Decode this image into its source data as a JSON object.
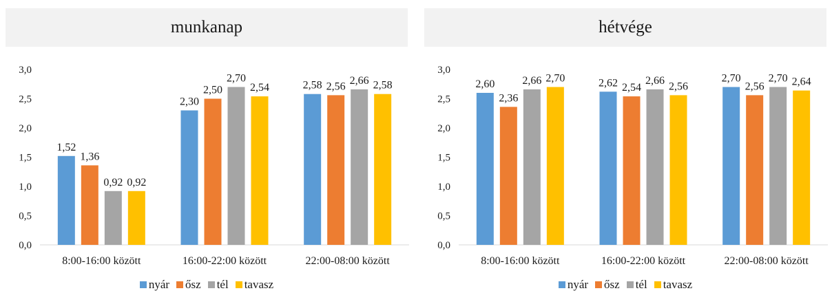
{
  "series_meta": [
    {
      "name": "nyár",
      "color": "#5b9bd5"
    },
    {
      "name": "ősz",
      "color": "#ed7d31"
    },
    {
      "name": "tél",
      "color": "#a5a5a5"
    },
    {
      "name": "tavasz",
      "color": "#ffc000"
    }
  ],
  "chart_data": [
    {
      "type": "bar",
      "title": "munkanap",
      "categories": [
        "8:00-16:00 között",
        "16:00-22:00 között",
        "22:00-08:00 között"
      ],
      "ylim": [
        0,
        3.0
      ],
      "yticks": [
        "0,0",
        "0,5",
        "1,0",
        "1,5",
        "2,0",
        "2,5",
        "3,0"
      ],
      "grid": false,
      "legend": "bottom",
      "series": [
        {
          "name": "nyár",
          "values": [
            1.52,
            2.3,
            2.58
          ],
          "labels": [
            "1,52",
            "2,30",
            "2,58"
          ]
        },
        {
          "name": "ősz",
          "values": [
            1.36,
            2.5,
            2.56
          ],
          "labels": [
            "1,36",
            "2,50",
            "2,56"
          ]
        },
        {
          "name": "tél",
          "values": [
            0.92,
            2.7,
            2.66
          ],
          "labels": [
            "0,92",
            "2,70",
            "2,66"
          ]
        },
        {
          "name": "tavasz",
          "values": [
            0.92,
            2.54,
            2.58
          ],
          "labels": [
            "0,92",
            "2,54",
            "2,58"
          ]
        }
      ]
    },
    {
      "type": "bar",
      "title": "hétvége",
      "categories": [
        "8:00-16:00 között",
        "16:00-22:00 között",
        "22:00-08:00 között"
      ],
      "ylim": [
        0,
        3.0
      ],
      "yticks": [
        "0,0",
        "0,5",
        "1,0",
        "1,5",
        "2,0",
        "2,5",
        "3,0"
      ],
      "grid": false,
      "legend": "bottom",
      "series": [
        {
          "name": "nyár",
          "values": [
            2.6,
            2.62,
            2.7
          ],
          "labels": [
            "2,60",
            "2,62",
            "2,70"
          ]
        },
        {
          "name": "ősz",
          "values": [
            2.36,
            2.54,
            2.56
          ],
          "labels": [
            "2,36",
            "2,54",
            "2,56"
          ]
        },
        {
          "name": "tél",
          "values": [
            2.66,
            2.66,
            2.7
          ],
          "labels": [
            "2,66",
            "2,66",
            "2,70"
          ]
        },
        {
          "name": "tavasz",
          "values": [
            2.7,
            2.56,
            2.64
          ],
          "labels": [
            "2,70",
            "2,56",
            "2,64"
          ]
        }
      ]
    }
  ]
}
